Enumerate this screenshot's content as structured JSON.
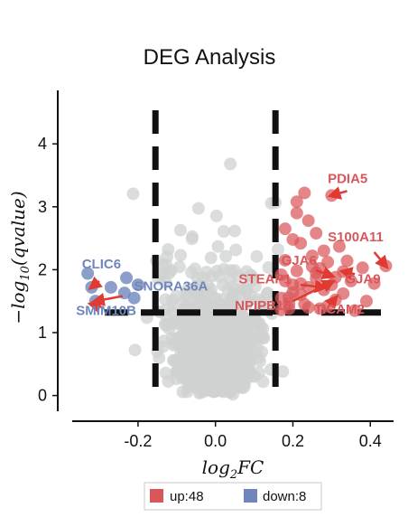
{
  "chart_data": {
    "type": "scatter",
    "title": "DEG Analysis",
    "xlabel_base": "log",
    "xlabel_sub": "2",
    "xlabel_rest": "FC",
    "ylabel_prefix": "−log",
    "ylabel_sub": "10",
    "ylabel_rest": "(qvalue)",
    "xlim": [
      -0.37,
      0.46
    ],
    "ylim": [
      -0.25,
      4.85
    ],
    "x_ticks": [
      -0.2,
      0.0,
      0.2,
      0.4
    ],
    "x_tick_labels": [
      "-0.2",
      "0.0",
      "0.2",
      "0.4"
    ],
    "y_ticks": [
      0,
      1,
      2,
      3,
      4
    ],
    "y_tick_labels": [
      "0",
      "1",
      "2",
      "3",
      "4"
    ],
    "thresholds": {
      "fc": [
        -0.155,
        0.155
      ],
      "q": 1.32
    },
    "colors": {
      "up": "#d9575a",
      "down": "#6f86bd",
      "ns": "#cfd1d0",
      "arrow": "#e03a32",
      "threshold": "#111111"
    },
    "legend": {
      "position": "bottom-center",
      "items": [
        {
          "label": "up:48",
          "color": "#d9575a"
        },
        {
          "label": "down:8",
          "color": "#6f86bd"
        }
      ]
    },
    "up_points": [
      [
        0.44,
        2.06
      ],
      [
        0.3,
        3.18
      ],
      [
        0.33,
        1.97
      ],
      [
        0.26,
        1.86
      ],
      [
        0.31,
        1.52
      ],
      [
        0.28,
        1.68
      ],
      [
        0.19,
        1.56
      ],
      [
        0.21,
        1.98
      ],
      [
        0.22,
        2.42
      ],
      [
        0.24,
        2.78
      ],
      [
        0.26,
        2.58
      ],
      [
        0.2,
        2.48
      ],
      [
        0.18,
        2.15
      ],
      [
        0.23,
        3.22
      ],
      [
        0.21,
        3.08
      ],
      [
        0.25,
        2.22
      ],
      [
        0.18,
        1.82
      ],
      [
        0.23,
        1.45
      ],
      [
        0.27,
        1.38
      ],
      [
        0.19,
        1.38
      ],
      [
        0.33,
        1.62
      ],
      [
        0.36,
        1.35
      ],
      [
        0.17,
        1.92
      ],
      [
        0.29,
        2.12
      ],
      [
        0.32,
        2.37
      ],
      [
        0.24,
        1.72
      ],
      [
        0.2,
        1.64
      ],
      [
        0.17,
        1.55
      ],
      [
        0.27,
        2.02
      ],
      [
        0.35,
        1.82
      ],
      [
        0.22,
        1.78
      ],
      [
        0.3,
        1.76
      ],
      [
        0.29,
        1.42
      ],
      [
        0.39,
        1.5
      ],
      [
        0.34,
        2.14
      ],
      [
        0.26,
        1.95
      ],
      [
        0.17,
        1.36
      ],
      [
        0.2,
        1.76
      ],
      [
        0.25,
        2.05
      ],
      [
        0.31,
        1.88
      ],
      [
        0.22,
        1.6
      ],
      [
        0.28,
        2.3
      ],
      [
        0.38,
        2.03
      ],
      [
        0.41,
        1.78
      ],
      [
        0.18,
        2.65
      ],
      [
        0.21,
        2.9
      ],
      [
        0.19,
        1.46
      ],
      [
        0.24,
        1.4
      ]
    ],
    "down_points": [
      [
        -0.33,
        1.94
      ],
      [
        -0.32,
        1.72
      ],
      [
        -0.31,
        1.5
      ],
      [
        -0.27,
        1.72
      ],
      [
        -0.23,
        1.87
      ],
      [
        -0.235,
        1.63
      ],
      [
        -0.2,
        1.76
      ],
      [
        -0.21,
        1.55
      ]
    ],
    "labels": [
      {
        "text": "PDIA5",
        "group": "up",
        "lx": 0.29,
        "ly": 3.38,
        "ax": [
          0.34,
          3.25
        ],
        "at": [
          0.3,
          3.18
        ]
      },
      {
        "text": "S100A11",
        "group": "up",
        "lx": 0.29,
        "ly": 2.45,
        "ax": [
          0.41,
          2.28
        ],
        "at": [
          0.44,
          2.06
        ]
      },
      {
        "text": "GJA6",
        "group": "up",
        "lx": 0.17,
        "ly": 2.08,
        "ax": [
          0.26,
          1.99
        ],
        "at": [
          0.3,
          1.9
        ]
      },
      {
        "text": "STEAP1",
        "group": "up",
        "lx": 0.06,
        "ly": 1.78,
        "ax": [
          0.22,
          1.76
        ],
        "at": [
          0.28,
          1.72
        ]
      },
      {
        "text": "GJA9",
        "group": "up",
        "lx": 0.335,
        "ly": 1.78,
        "ax": [
          0.36,
          1.93
        ],
        "at": [
          0.33,
          1.97
        ]
      },
      {
        "text": "NPIPB15",
        "group": "up",
        "lx": 0.05,
        "ly": 1.36,
        "ax": [
          0.2,
          1.5
        ],
        "at": [
          0.3,
          1.8
        ]
      },
      {
        "text": "TICAM2",
        "group": "up",
        "lx": 0.255,
        "ly": 1.3,
        "ax": [
          0.29,
          1.4
        ],
        "at": [
          0.31,
          1.55
        ]
      },
      {
        "text": "CLIC6",
        "group": "down",
        "lx": -0.345,
        "ly": 2.02,
        "ax": [
          -0.3,
          1.82
        ],
        "at": [
          -0.32,
          1.72
        ]
      },
      {
        "text": "SNORA36A",
        "group": "down",
        "lx": -0.21,
        "ly": 1.67,
        "ax": [
          -0.24,
          1.58
        ],
        "at": [
          -0.31,
          1.5
        ]
      },
      {
        "text": "SMIM10B",
        "group": "down",
        "lx": -0.36,
        "ly": 1.28,
        "ax": [
          -0.29,
          1.4
        ],
        "at": [
          -0.32,
          1.45
        ]
      }
    ]
  }
}
